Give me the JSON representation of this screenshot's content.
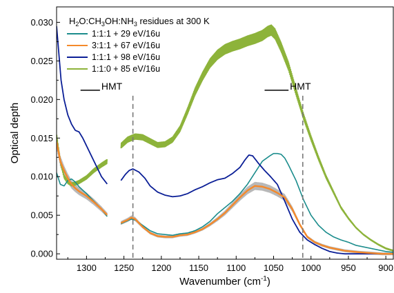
{
  "chart_data": {
    "type": "line",
    "title": {
      "base": "H",
      "s1": "2",
      "mid1": "O:CH",
      "s2": "3",
      "mid2": "OH:NH",
      "s3": "3",
      "tail": " residues at 300 K"
    },
    "xlabel": {
      "main": "Wavenumber (cm",
      "sup": "-1",
      "close": ")"
    },
    "ylabel": "Optical depth",
    "x_reversed": true,
    "xlim": [
      1340,
      890
    ],
    "ylim": [
      -0.0007,
      0.032
    ],
    "x_ticks": [
      1300,
      1250,
      1200,
      1150,
      1100,
      1050,
      1000,
      950,
      900
    ],
    "y_ticks": [
      0.0,
      0.005,
      0.01,
      0.015,
      0.02,
      0.025,
      0.03
    ],
    "y_tick_labels": [
      "0.000",
      "0.005",
      "0.010",
      "0.015",
      "0.020",
      "0.025",
      "0.030"
    ],
    "grid": false,
    "legend_position": "top-left",
    "gap": [
      1272,
      1254
    ],
    "annotations": [
      {
        "text": "HMT",
        "x": 1238,
        "label_y": 0.0213,
        "hline_x": [
          1308,
          1282
        ],
        "hline_y": 0.0212
      },
      {
        "text": "HMT",
        "x": 1011,
        "label_y": 0.0213,
        "hline_x": [
          1062,
          1030
        ],
        "hline_y": 0.0212
      }
    ],
    "series": [
      {
        "name": "1:1:1 + 29 eV/16u",
        "color": "#1a8c8c",
        "width": 1.6,
        "noise": 0,
        "points": [
          [
            1340,
            0.0105
          ],
          [
            1335,
            0.009
          ],
          [
            1330,
            0.0088
          ],
          [
            1325,
            0.0095
          ],
          [
            1320,
            0.0097
          ],
          [
            1315,
            0.0093
          ],
          [
            1310,
            0.0087
          ],
          [
            1300,
            0.0078
          ],
          [
            1290,
            0.0068
          ],
          [
            1280,
            0.0058
          ],
          [
            1272,
            0.0048
          ],
          [
            1254,
            0.0039
          ],
          [
            1245,
            0.0043
          ],
          [
            1240,
            0.0045
          ],
          [
            1235,
            0.0044
          ],
          [
            1225,
            0.0037
          ],
          [
            1215,
            0.003
          ],
          [
            1205,
            0.0026
          ],
          [
            1195,
            0.0025
          ],
          [
            1185,
            0.0024
          ],
          [
            1175,
            0.0026
          ],
          [
            1165,
            0.0027
          ],
          [
            1155,
            0.003
          ],
          [
            1145,
            0.0035
          ],
          [
            1135,
            0.0042
          ],
          [
            1125,
            0.0052
          ],
          [
            1115,
            0.006
          ],
          [
            1105,
            0.0068
          ],
          [
            1095,
            0.0078
          ],
          [
            1085,
            0.009
          ],
          [
            1075,
            0.0105
          ],
          [
            1065,
            0.012
          ],
          [
            1055,
            0.0127
          ],
          [
            1050,
            0.013
          ],
          [
            1045,
            0.013
          ],
          [
            1040,
            0.0129
          ],
          [
            1035,
            0.0124
          ],
          [
            1030,
            0.0115
          ],
          [
            1020,
            0.0095
          ],
          [
            1010,
            0.007
          ],
          [
            1000,
            0.005
          ],
          [
            990,
            0.0037
          ],
          [
            980,
            0.0028
          ],
          [
            970,
            0.0022
          ],
          [
            960,
            0.0018
          ],
          [
            950,
            0.0015
          ],
          [
            940,
            0.0011
          ],
          [
            930,
            0.0009
          ],
          [
            920,
            0.0007
          ],
          [
            910,
            0.0005
          ],
          [
            900,
            0.0003
          ],
          [
            890,
            0.0002
          ]
        ]
      },
      {
        "name": "3:1:1 + 67 eV/16u",
        "color": "#f5892a",
        "width": 2.4,
        "noise": 0.0018,
        "noiseColor": "#b8b8b8",
        "points": [
          [
            1340,
            0.0145
          ],
          [
            1335,
            0.012
          ],
          [
            1330,
            0.0108
          ],
          [
            1325,
            0.0098
          ],
          [
            1320,
            0.009
          ],
          [
            1315,
            0.0085
          ],
          [
            1310,
            0.0081
          ],
          [
            1300,
            0.0075
          ],
          [
            1290,
            0.0067
          ],
          [
            1280,
            0.0058
          ],
          [
            1272,
            0.005
          ],
          [
            1254,
            0.004
          ],
          [
            1245,
            0.0044
          ],
          [
            1240,
            0.0047
          ],
          [
            1235,
            0.0045
          ],
          [
            1225,
            0.0035
          ],
          [
            1215,
            0.0027
          ],
          [
            1205,
            0.0023
          ],
          [
            1195,
            0.0022
          ],
          [
            1185,
            0.0022
          ],
          [
            1175,
            0.0024
          ],
          [
            1165,
            0.0025
          ],
          [
            1155,
            0.0028
          ],
          [
            1145,
            0.0032
          ],
          [
            1135,
            0.0038
          ],
          [
            1125,
            0.0045
          ],
          [
            1115,
            0.0053
          ],
          [
            1105,
            0.0063
          ],
          [
            1095,
            0.0073
          ],
          [
            1085,
            0.0082
          ],
          [
            1075,
            0.0088
          ],
          [
            1065,
            0.0087
          ],
          [
            1055,
            0.0084
          ],
          [
            1045,
            0.0079
          ],
          [
            1035,
            0.0073
          ],
          [
            1025,
            0.0058
          ],
          [
            1015,
            0.0038
          ],
          [
            1005,
            0.0022
          ],
          [
            995,
            0.0015
          ],
          [
            985,
            0.0011
          ],
          [
            975,
            0.0008
          ],
          [
            965,
            0.0006
          ],
          [
            955,
            0.0004
          ],
          [
            945,
            0.0003
          ],
          [
            935,
            0.0002
          ],
          [
            920,
            0.0001
          ],
          [
            905,
            0.0
          ],
          [
            890,
            0.0
          ]
        ]
      },
      {
        "name": "1:1:1 + 98 eV/16u",
        "color": "#0a1e96",
        "width": 1.8,
        "noise": 0,
        "points": [
          [
            1340,
            0.0295
          ],
          [
            1337,
            0.026
          ],
          [
            1334,
            0.0225
          ],
          [
            1330,
            0.02
          ],
          [
            1325,
            0.018
          ],
          [
            1320,
            0.0168
          ],
          [
            1315,
            0.016
          ],
          [
            1310,
            0.0158
          ],
          [
            1305,
            0.015
          ],
          [
            1300,
            0.014
          ],
          [
            1290,
            0.012
          ],
          [
            1280,
            0.01
          ],
          [
            1272,
            0.009
          ],
          [
            1254,
            0.0095
          ],
          [
            1248,
            0.0103
          ],
          [
            1243,
            0.0108
          ],
          [
            1238,
            0.011
          ],
          [
            1230,
            0.0106
          ],
          [
            1222,
            0.0098
          ],
          [
            1215,
            0.0088
          ],
          [
            1205,
            0.008
          ],
          [
            1195,
            0.0076
          ],
          [
            1185,
            0.0074
          ],
          [
            1175,
            0.0075
          ],
          [
            1165,
            0.0078
          ],
          [
            1155,
            0.0083
          ],
          [
            1145,
            0.0087
          ],
          [
            1135,
            0.0092
          ],
          [
            1125,
            0.0096
          ],
          [
            1115,
            0.0098
          ],
          [
            1105,
            0.0104
          ],
          [
            1095,
            0.0112
          ],
          [
            1088,
            0.0122
          ],
          [
            1083,
            0.0128
          ],
          [
            1078,
            0.0127
          ],
          [
            1070,
            0.0117
          ],
          [
            1062,
            0.0108
          ],
          [
            1055,
            0.0101
          ],
          [
            1045,
            0.009
          ],
          [
            1035,
            0.0068
          ],
          [
            1025,
            0.0045
          ],
          [
            1015,
            0.0028
          ],
          [
            1005,
            0.0018
          ],
          [
            995,
            0.0012
          ],
          [
            985,
            0.0007
          ],
          [
            975,
            0.0003
          ],
          [
            965,
            0.0001
          ],
          [
            955,
            0.0
          ],
          [
            940,
            0.0
          ],
          [
            920,
            0.0
          ],
          [
            900,
            0.0
          ],
          [
            890,
            0.0
          ]
        ]
      },
      {
        "name": "1:1:0 + 85 eV/16u",
        "color": "#8db33a",
        "width": 1.4,
        "noise": 0.0007,
        "points": [
          [
            1340,
            0.0153
          ],
          [
            1335,
            0.012
          ],
          [
            1330,
            0.01
          ],
          [
            1325,
            0.0093
          ],
          [
            1320,
            0.009
          ],
          [
            1315,
            0.0091
          ],
          [
            1310,
            0.0093
          ],
          [
            1300,
            0.0099
          ],
          [
            1290,
            0.0108
          ],
          [
            1280,
            0.0115
          ],
          [
            1272,
            0.012
          ],
          [
            1254,
            0.014
          ],
          [
            1245,
            0.0148
          ],
          [
            1235,
            0.0152
          ],
          [
            1225,
            0.0151
          ],
          [
            1215,
            0.0146
          ],
          [
            1205,
            0.0141
          ],
          [
            1195,
            0.0142
          ],
          [
            1185,
            0.0148
          ],
          [
            1175,
            0.0162
          ],
          [
            1165,
            0.0185
          ],
          [
            1155,
            0.021
          ],
          [
            1145,
            0.023
          ],
          [
            1135,
            0.0247
          ],
          [
            1125,
            0.0258
          ],
          [
            1115,
            0.0265
          ],
          [
            1105,
            0.0269
          ],
          [
            1095,
            0.0272
          ],
          [
            1085,
            0.0276
          ],
          [
            1075,
            0.0279
          ],
          [
            1065,
            0.0283
          ],
          [
            1058,
            0.0288
          ],
          [
            1053,
            0.029
          ],
          [
            1048,
            0.0285
          ],
          [
            1040,
            0.0268
          ],
          [
            1030,
            0.0243
          ],
          [
            1020,
            0.021
          ],
          [
            1010,
            0.0178
          ],
          [
            1000,
            0.015
          ],
          [
            990,
            0.0124
          ],
          [
            980,
            0.01
          ],
          [
            970,
            0.008
          ],
          [
            960,
            0.006
          ],
          [
            950,
            0.0046
          ],
          [
            940,
            0.0034
          ],
          [
            930,
            0.0025
          ],
          [
            920,
            0.0018
          ],
          [
            910,
            0.0012
          ],
          [
            900,
            0.0007
          ],
          [
            890,
            0.0004
          ]
        ]
      }
    ]
  }
}
